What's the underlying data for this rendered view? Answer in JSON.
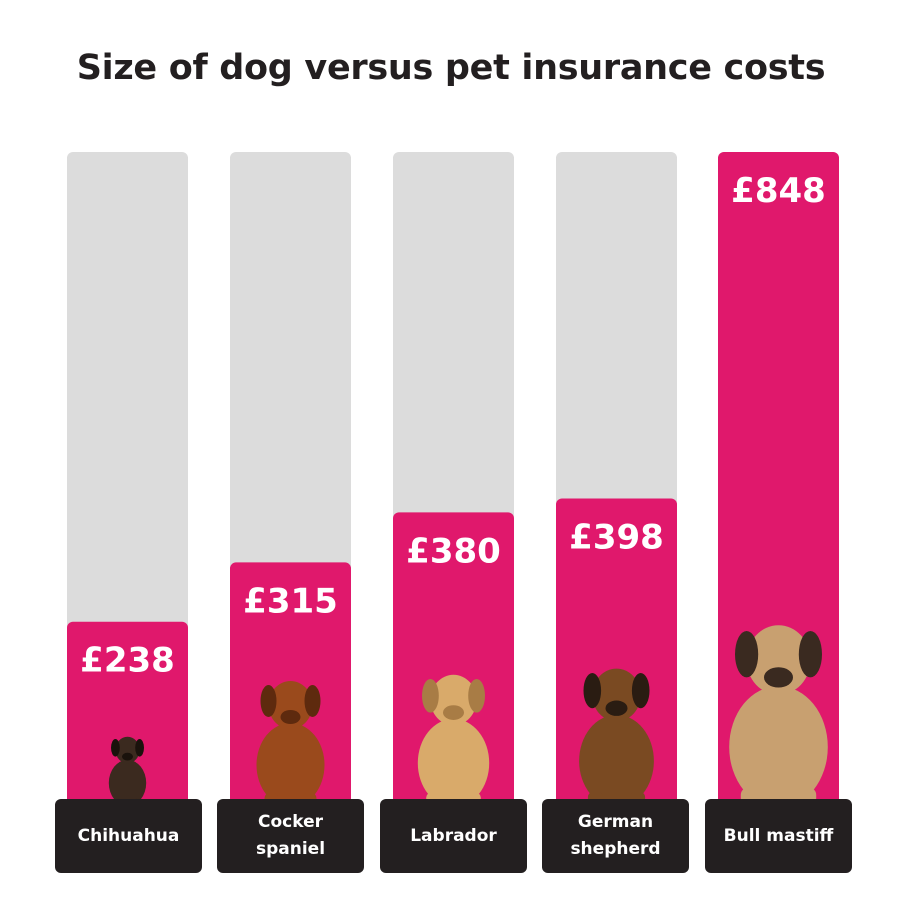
{
  "chart_data": {
    "type": "bar",
    "title": "Size of dog versus pet insurance costs",
    "categories": [
      "Chihuahua",
      "Cocker\nspaniel",
      "Labrador",
      "German\nshepherd",
      "Bull mastiff"
    ],
    "values": [
      238,
      315,
      380,
      398,
      848
    ],
    "data_labels": [
      "£238",
      "£315",
      "£380",
      "£398",
      "£848"
    ],
    "ylim": [
      0,
      848
    ],
    "grid": false,
    "legend": "none",
    "colors": {
      "bar": "#e0186c",
      "track": "#dcdcdc",
      "label_box": "#231f20",
      "value_text": "#ffffff"
    },
    "icons": [
      "chihuahua-icon",
      "cocker-spaniel-icon",
      "labrador-icon",
      "german-shepherd-icon",
      "bull-mastiff-icon"
    ]
  }
}
